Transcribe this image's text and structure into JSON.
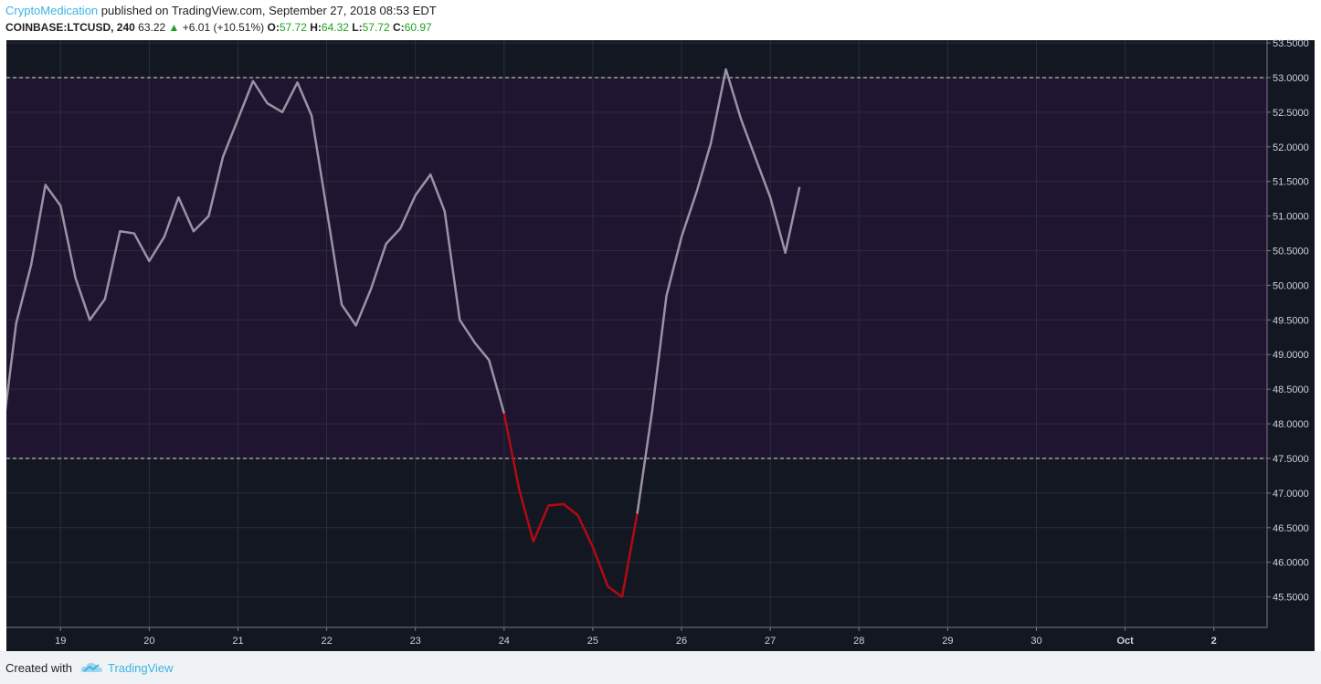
{
  "header": {
    "author": "CryptoMedication",
    "published": "published on TradingView.com, September 27, 2018 08:53 EDT",
    "symbol": "COINBASE:LTCUSD, 240",
    "last": "63.22",
    "arrow": "▲",
    "change": "+6.01 (+10.51%)",
    "o_label": "O:",
    "o": "57.72",
    "h_label": "H:",
    "h": "64.32",
    "l_label": "L:",
    "l": "57.72",
    "c_label": "C:",
    "c": "60.97"
  },
  "footer": {
    "created": "Created with",
    "brand": "TradingView"
  },
  "chart_data": {
    "type": "line",
    "x": [
      18.33,
      18.5,
      18.67,
      18.83,
      19,
      19.17,
      19.33,
      19.5,
      19.67,
      19.83,
      20,
      20.17,
      20.33,
      20.5,
      20.67,
      20.83,
      21,
      21.17,
      21.33,
      21.5,
      21.67,
      21.83,
      22,
      22.17,
      22.33,
      22.5,
      22.67,
      22.83,
      23,
      23.17,
      23.33,
      23.5,
      23.67,
      23.83,
      24,
      24.17,
      24.33,
      24.5,
      24.67,
      24.83,
      25,
      25.17,
      25.33,
      25.5,
      25.67,
      25.83,
      26,
      26.17,
      26.33,
      26.5,
      26.67,
      26.83,
      27,
      27.17,
      27.33
    ],
    "series": [
      {
        "color": "#9a92a5",
        "values": [
          47.7,
          49.45,
          50.3,
          51.45,
          51.15,
          50.1,
          49.5,
          49.8,
          50.78,
          50.75,
          50.35,
          50.7,
          51.27,
          50.78,
          51.0,
          51.85,
          52.4,
          52.95,
          52.63,
          52.5,
          52.93,
          52.45,
          51.1,
          49.72,
          49.42,
          49.95,
          50.6,
          50.82,
          51.3,
          51.6,
          51.07,
          49.5,
          49.17,
          48.92,
          48.15,
          null,
          null,
          null,
          null,
          null,
          null,
          null,
          null,
          46.7,
          48.2,
          49.85,
          50.7,
          51.35,
          52.05,
          53.12,
          52.4,
          51.85,
          51.27,
          50.47,
          51.42
        ]
      },
      {
        "color": "#b20a14",
        "values": [
          null,
          null,
          null,
          null,
          null,
          null,
          null,
          null,
          null,
          null,
          null,
          null,
          null,
          null,
          null,
          null,
          null,
          null,
          null,
          null,
          null,
          null,
          null,
          null,
          null,
          null,
          null,
          null,
          null,
          null,
          null,
          null,
          null,
          null,
          48.15,
          47.05,
          46.3,
          46.82,
          46.84,
          46.68,
          46.22,
          45.65,
          45.5,
          46.7,
          null,
          null,
          null,
          null,
          null,
          null,
          null,
          null,
          null,
          null,
          null
        ]
      }
    ],
    "xlim": [
      18.39,
      32.6
    ],
    "xticks": [
      19,
      20,
      21,
      22,
      23,
      24,
      25,
      26,
      27,
      28,
      29,
      30,
      {
        "value": 31,
        "label": "Oct"
      },
      {
        "value": 32,
        "label": "2"
      }
    ],
    "ylim": [
      45.06,
      53.54
    ],
    "yticks": [
      {
        "value": 45.5,
        "label": "45.5000"
      },
      {
        "value": 46,
        "label": "46.0000"
      },
      {
        "value": 46.5,
        "label": "46.5000"
      },
      {
        "value": 47,
        "label": "47.0000"
      },
      {
        "value": 47.5,
        "label": "47.5000"
      },
      {
        "value": 48,
        "label": "48.0000"
      },
      {
        "value": 48.5,
        "label": "48.5000"
      },
      {
        "value": 49,
        "label": "49.0000"
      },
      {
        "value": 49.5,
        "label": "49.5000"
      },
      {
        "value": 50,
        "label": "50.0000"
      },
      {
        "value": 50.5,
        "label": "50.5000"
      },
      {
        "value": 51,
        "label": "51.0000"
      },
      {
        "value": 51.5,
        "label": "51.5000"
      },
      {
        "value": 52,
        "label": "52.0000"
      },
      {
        "value": 52.5,
        "label": "52.5000"
      },
      {
        "value": 53,
        "label": "53.0000"
      },
      {
        "value": 53.5,
        "label": "53.5000"
      }
    ],
    "band": [
      47.5,
      53
    ],
    "hlines": [
      53,
      47.5
    ],
    "grid": true
  }
}
